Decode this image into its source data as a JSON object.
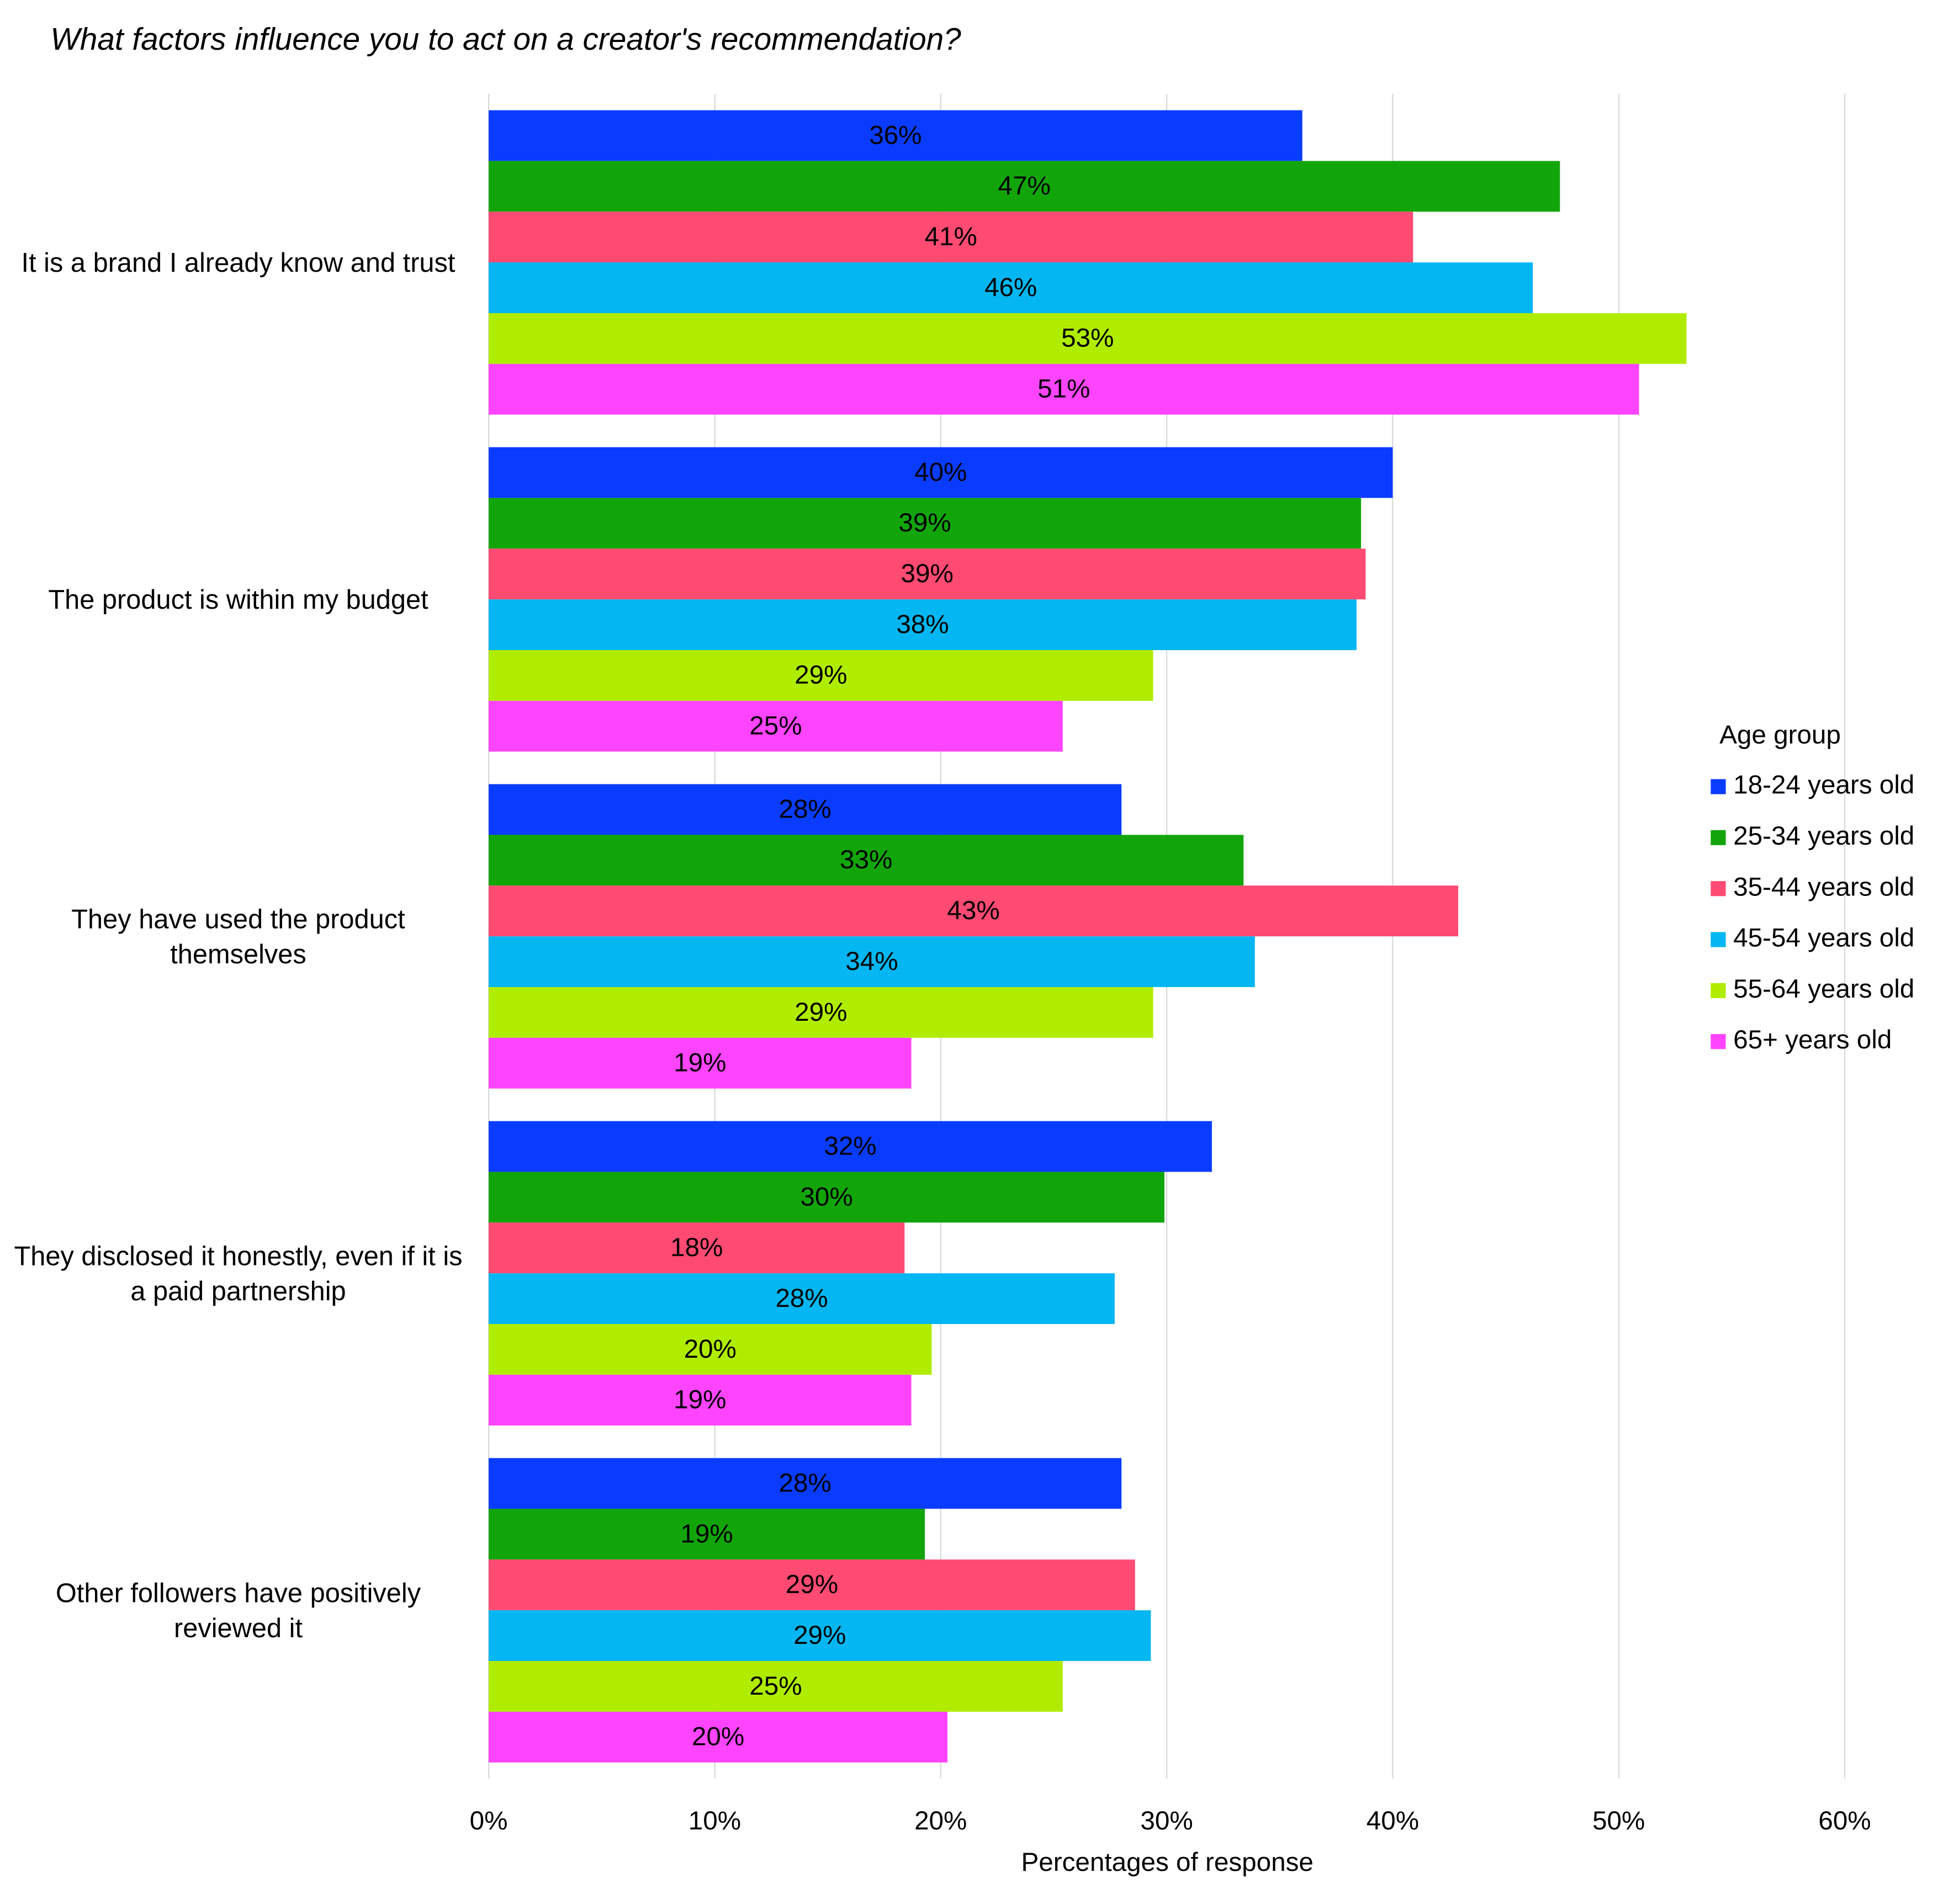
{
  "chart_data": {
    "type": "hbar",
    "title": "What factors influence you to act on a creator's recommendation?",
    "x_label": "Percentages of response",
    "legend_title": "Age group",
    "legend_position": "right",
    "grid": true,
    "categories": [
      "It is a brand I already know and trust",
      "The product is within my budget",
      "They have used the product themselves",
      "They disclosed it honestly, even if it is a paid partnership",
      "Other followers have positively reviewed it"
    ],
    "xlim": [
      0,
      60
    ],
    "xticks": [
      {
        "value": 0,
        "label": "0%"
      },
      {
        "value": 10,
        "label": "10%"
      },
      {
        "value": 20,
        "label": "20%"
      },
      {
        "value": 30,
        "label": "30%"
      },
      {
        "value": 40,
        "label": "40%"
      },
      {
        "value": 50,
        "label": "50%"
      },
      {
        "value": 60,
        "label": "60%"
      }
    ],
    "series": [
      {
        "name": "18-24 years old",
        "color": "#0a3cff",
        "label_color": "#ffffff",
        "values": [
          36.0,
          40.0,
          28.0,
          32.0,
          28.0
        ],
        "value_labels": [
          "36%",
          "40%",
          "28%",
          "32%",
          "28%"
        ]
      },
      {
        "name": "25-34 years old",
        "color": "#12a50a",
        "label_color": "#000000",
        "values": [
          47.4,
          38.6,
          33.4,
          29.9,
          19.3
        ],
        "value_labels": [
          "47%",
          "39%",
          "33%",
          "30%",
          "19%"
        ]
      },
      {
        "name": "35-44 years old",
        "color": "#ff4a72",
        "label_color": "#000000",
        "values": [
          40.9,
          38.8,
          42.9,
          18.4,
          28.6
        ],
        "value_labels": [
          "41%",
          "39%",
          "43%",
          "18%",
          "29%"
        ]
      },
      {
        "name": "45-54 years old",
        "color": "#04b6f2",
        "label_color": "#ffffff",
        "values": [
          46.2,
          38.4,
          33.9,
          27.7,
          29.3
        ],
        "value_labels": [
          "46%",
          "38%",
          "34%",
          "28%",
          "29%"
        ]
      },
      {
        "name": "55-64 years old",
        "color": "#b0ec00",
        "label_color": "#000000",
        "values": [
          53.0,
          29.4,
          29.4,
          19.6,
          25.4
        ],
        "value_labels": [
          "53%",
          "29%",
          "29%",
          "20%",
          "25%"
        ]
      },
      {
        "name": "65+ years old",
        "color": "#ff44ff",
        "label_color": "#000000",
        "values": [
          50.9,
          25.4,
          18.7,
          18.7,
          20.3
        ],
        "value_labels": [
          "51%",
          "25%",
          "19%",
          "19%",
          "20%"
        ]
      }
    ]
  }
}
